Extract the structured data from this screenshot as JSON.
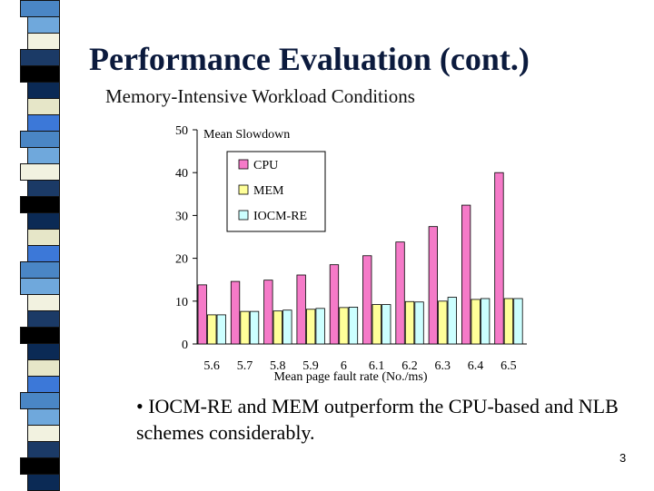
{
  "slide": {
    "title": "Performance Evaluation (cont.)",
    "subtitle": "Memory-Intensive Workload Conditions",
    "bullet": "• IOCM-RE and MEM outperform the CPU-based and NLB schemes considerably.",
    "page_number": "3"
  },
  "colors": {
    "title": "#0b1a3d",
    "strip": [
      "#4a86c5",
      "#1b3a66",
      "#e6e6c8",
      "#6fa8dc",
      "#000000",
      "#3c78d8",
      "#f2f2e0",
      "#0b2a55"
    ]
  },
  "chart_data": {
    "type": "bar",
    "ylabel": "Mean Slowdown",
    "xlabel": "Mean page fault rate (No./ms)",
    "categories": [
      "5.6",
      "5.7",
      "5.8",
      "5.9",
      "6",
      "6.1",
      "6.2",
      "6.3",
      "6.4",
      "6.5"
    ],
    "ylim": [
      0,
      50
    ],
    "yticks": [
      0,
      10,
      20,
      30,
      40,
      50
    ],
    "legend_position": "top-left",
    "series": [
      {
        "name": "CPU",
        "color": "#f57ac8",
        "values": [
          13.8,
          14.6,
          14.9,
          16.1,
          18.5,
          20.6,
          23.8,
          27.4,
          32.4,
          40.0
        ]
      },
      {
        "name": "MEM",
        "color": "#ffff99",
        "values": [
          6.8,
          7.6,
          7.7,
          8.1,
          8.5,
          9.2,
          9.9,
          10.0,
          10.4,
          10.6
        ]
      },
      {
        "name": "IOCM-RE",
        "color": "#ccffff",
        "values": [
          6.8,
          7.6,
          7.9,
          8.3,
          8.6,
          9.2,
          9.8,
          10.9,
          10.6,
          10.6
        ]
      }
    ]
  }
}
